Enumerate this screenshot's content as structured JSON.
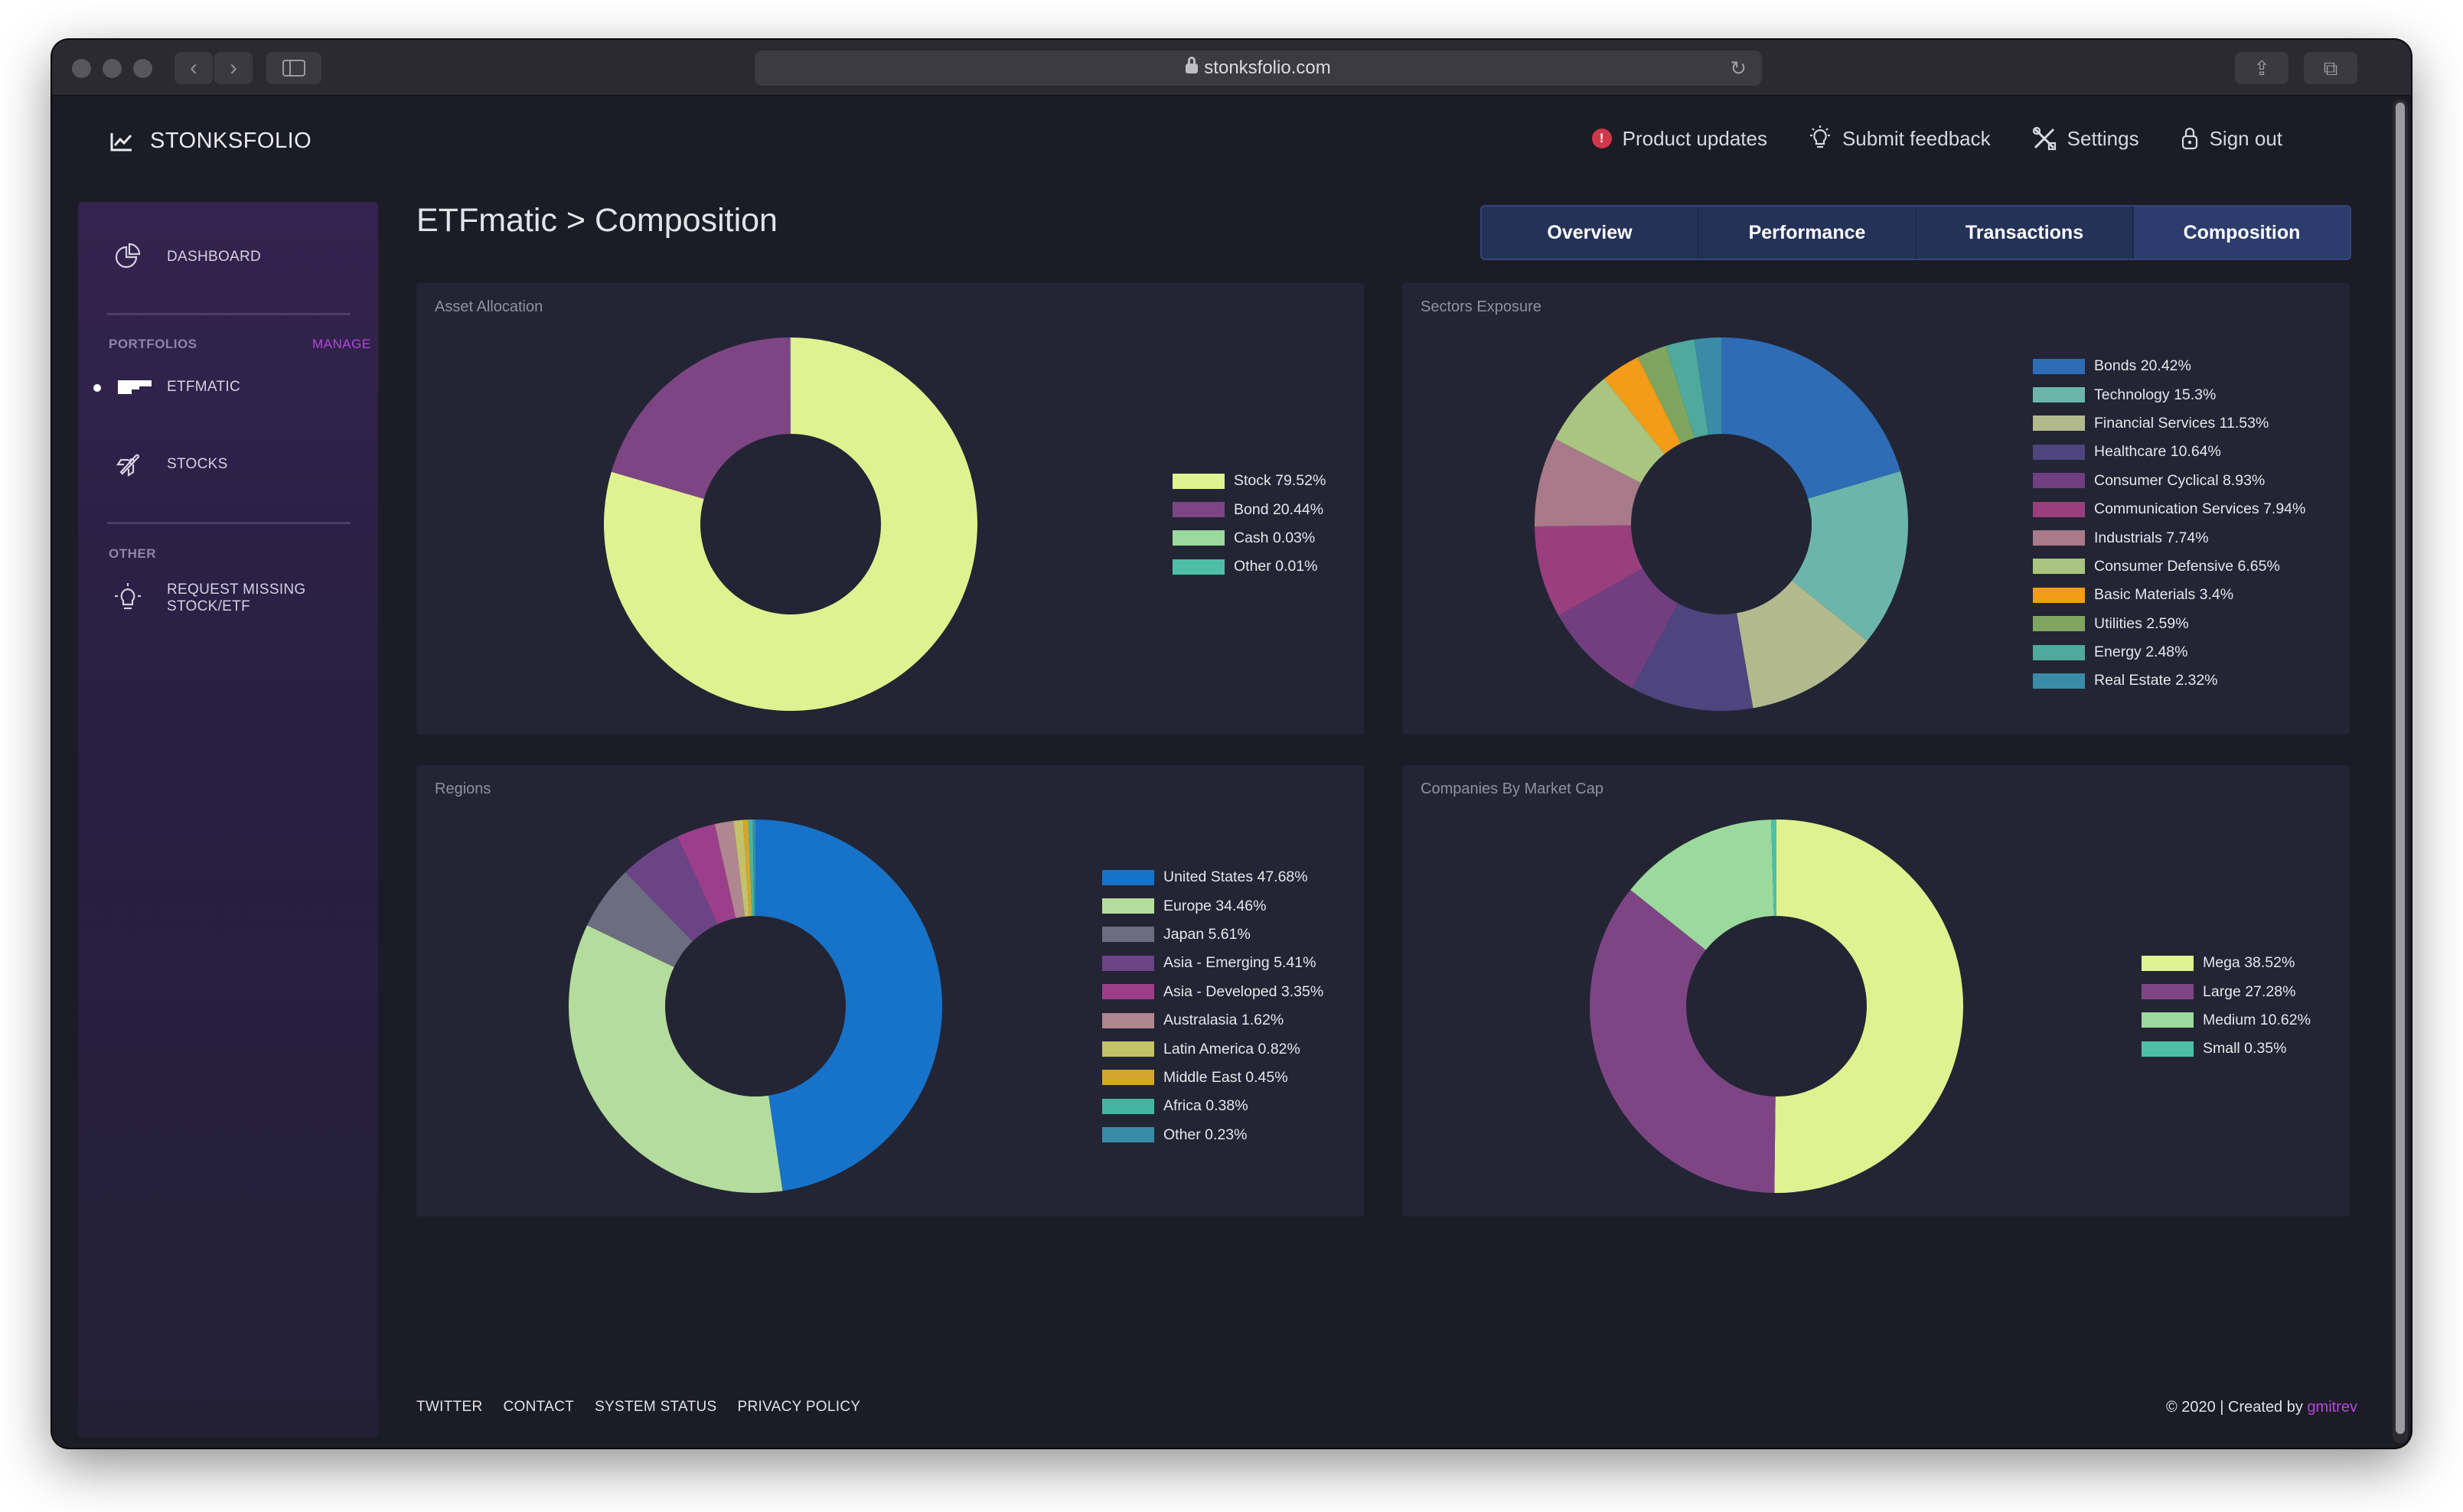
{
  "browser": {
    "url": "stonksfolio.com"
  },
  "header": {
    "logo_text": "STONKSFOLIO",
    "nav": {
      "updates_badge": "!",
      "product_updates": "Product updates",
      "submit_feedback": "Submit feedback",
      "settings": "Settings",
      "sign_out": "Sign out"
    }
  },
  "sidebar": {
    "dashboard": "DASHBOARD",
    "portfolios_header": "PORTFOLIOS",
    "manage": "MANAGE",
    "portfolio_1": "ETFMATIC",
    "portfolio_2": "STOCKS",
    "other_header": "OTHER",
    "request_missing": "REQUEST MISSING STOCK/ETF"
  },
  "main": {
    "breadcrumb": "ETFmatic > Composition",
    "tabs": [
      "Overview",
      "Performance",
      "Transactions",
      "Composition"
    ],
    "active_tab": "Composition"
  },
  "cards": {
    "asset_allocation": "Asset Allocation",
    "sectors_exposure": "Sectors Exposure",
    "regions": "Regions",
    "market_cap": "Companies By Market Cap"
  },
  "chart_data": [
    {
      "type": "pie",
      "title": "Asset Allocation",
      "donut": true,
      "legend_position": "right",
      "slices": [
        {
          "label": "Stock 79.52%",
          "value": 79.52,
          "color": "#e0f28f"
        },
        {
          "label": "Bond 20.44%",
          "value": 20.44,
          "color": "#7e4585"
        },
        {
          "label": "Cash 0.03%",
          "value": 0.03,
          "color": "#9cd99c"
        },
        {
          "label": "Other 0.01%",
          "value": 0.01,
          "color": "#4ebfa7"
        }
      ]
    },
    {
      "type": "pie",
      "title": "Sectors Exposure",
      "donut": true,
      "legend_position": "right",
      "slices": [
        {
          "label": "Bonds 20.42%",
          "value": 20.42,
          "color": "#2e6cb6"
        },
        {
          "label": "Technology 15.3%",
          "value": 15.3,
          "color": "#6cb5aa"
        },
        {
          "label": "Financial Services 11.53%",
          "value": 11.53,
          "color": "#b2b98d"
        },
        {
          "label": "Healthcare 10.64%",
          "value": 10.64,
          "color": "#4e447e"
        },
        {
          "label": "Consumer Cyclical 8.93%",
          "value": 8.93,
          "color": "#713f7f"
        },
        {
          "label": "Communication Services 7.94%",
          "value": 7.94,
          "color": "#9a3f7e"
        },
        {
          "label": "Industrials 7.74%",
          "value": 7.74,
          "color": "#a87a8a"
        },
        {
          "label": "Consumer Defensive 6.65%",
          "value": 6.65,
          "color": "#a9c57f"
        },
        {
          "label": "Basic Materials 3.4%",
          "value": 3.4,
          "color": "#f39c17"
        },
        {
          "label": "Utilities 2.59%",
          "value": 2.59,
          "color": "#7fa560"
        },
        {
          "label": "Energy 2.48%",
          "value": 2.48,
          "color": "#4fa99d"
        },
        {
          "label": "Real Estate 2.32%",
          "value": 2.32,
          "color": "#3a8ca6"
        }
      ]
    },
    {
      "type": "pie",
      "title": "Regions",
      "donut": true,
      "legend_position": "right",
      "slices": [
        {
          "label": "United States 47.68%",
          "value": 47.68,
          "color": "#1673c9"
        },
        {
          "label": "Europe 34.46%",
          "value": 34.46,
          "color": "#b4dc9c"
        },
        {
          "label": "Japan 5.61%",
          "value": 5.61,
          "color": "#6d6d82"
        },
        {
          "label": "Asia - Emerging 5.41%",
          "value": 5.41,
          "color": "#6b4486"
        },
        {
          "label": "Asia - Developed 3.35%",
          "value": 3.35,
          "color": "#9c3f8a"
        },
        {
          "label": "Australasia 1.62%",
          "value": 1.62,
          "color": "#b08690"
        },
        {
          "label": "Latin America 0.82%",
          "value": 0.82,
          "color": "#c3c169"
        },
        {
          "label": "Middle East 0.45%",
          "value": 0.45,
          "color": "#d3a72e"
        },
        {
          "label": "Africa 0.38%",
          "value": 0.38,
          "color": "#45b5a2"
        },
        {
          "label": "Other 0.23%",
          "value": 0.23,
          "color": "#3a8ca6"
        }
      ]
    },
    {
      "type": "pie",
      "title": "Companies By Market Cap",
      "donut": true,
      "legend_position": "right",
      "slices": [
        {
          "label": "Mega 38.52%",
          "value": 38.52,
          "color": "#e0f28f"
        },
        {
          "label": "Large 27.28%",
          "value": 27.28,
          "color": "#7e4585"
        },
        {
          "label": "Medium 10.62%",
          "value": 10.62,
          "color": "#9cd99c"
        },
        {
          "label": "Small 0.35%",
          "value": 0.35,
          "color": "#4ebfa7"
        }
      ]
    }
  ],
  "footer": {
    "links": [
      "TWITTER",
      "CONTACT",
      "SYSTEM STATUS",
      "PRIVACY POLICY"
    ],
    "copyright": "© 2020 | Created by ",
    "author": "gmitrev"
  }
}
